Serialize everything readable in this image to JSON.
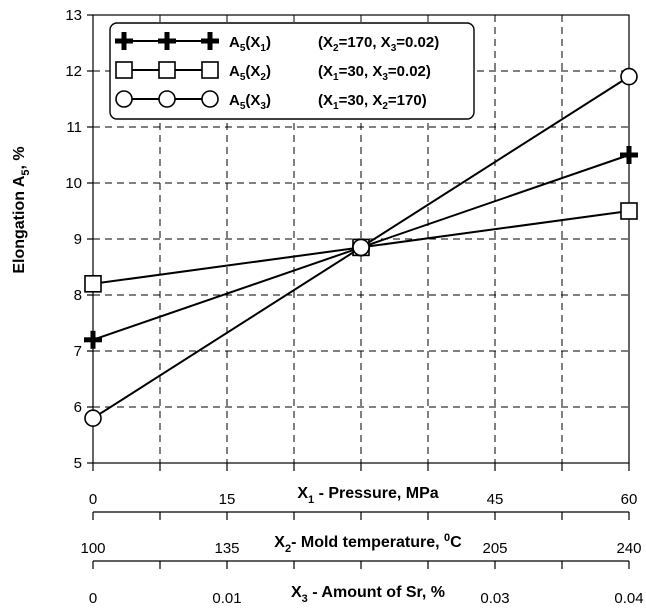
{
  "chart_data": {
    "type": "line",
    "ylabel": "Elongation A",
    "ylabel_sub": "5",
    "ylabel_suffix": ", %",
    "ylim": [
      5,
      13
    ],
    "yticks": [
      "5",
      "6",
      "7",
      "8",
      "9",
      "10",
      "11",
      "12",
      "13"
    ],
    "grid": true,
    "legend_position": "top-left",
    "x_axes": [
      {
        "title": "X",
        "title_sub": "1",
        "title_rest": " - Pressure, MPa",
        "range": [
          0,
          60
        ],
        "ticks": [
          "0",
          "15",
          "",
          "45",
          "60"
        ]
      },
      {
        "title": "X",
        "title_sub": "2",
        "title_rest": "- Mold temperature, ",
        "title_sup": "0",
        "title_unit": "C",
        "range": [
          100,
          240
        ],
        "ticks": [
          "100",
          "135",
          "",
          "205",
          "240"
        ]
      },
      {
        "title": "X",
        "title_sub": "3",
        "title_rest": " - Amount of Sr, %",
        "range": [
          0,
          0.04
        ],
        "ticks": [
          "0",
          "0.01",
          "",
          "0.03",
          "0.04"
        ]
      }
    ],
    "series": [
      {
        "name_main": "A",
        "name_sub": "5",
        "name_arg": "(X",
        "name_arg_sub": "1",
        "name_arg_end": ")",
        "cond": "(X2=170, X3=0.02)",
        "cond_parts": [
          "(X",
          "2",
          "=170, X",
          "3",
          "=0.02)"
        ],
        "marker": "plus",
        "x_axis_index": 0,
        "x": [
          0,
          30,
          60
        ],
        "y": [
          7.2,
          8.85,
          10.5
        ]
      },
      {
        "name_main": "A",
        "name_sub": "5",
        "name_arg": "(X",
        "name_arg_sub": "2",
        "name_arg_end": ")",
        "cond": "(X1=30, X3=0.02)",
        "cond_parts": [
          "(X",
          "1",
          "=30, X",
          "3",
          "=0.02)"
        ],
        "marker": "square",
        "x_axis_index": 1,
        "x": [
          100,
          170,
          240
        ],
        "y": [
          8.2,
          8.85,
          9.5
        ]
      },
      {
        "name_main": "A",
        "name_sub": "5",
        "name_arg": "(X",
        "name_arg_sub": "3",
        "name_arg_end": ")",
        "cond": "(X1=30, X2=170)",
        "cond_parts": [
          "(X",
          "1",
          "=30, X",
          "2",
          "=170)"
        ],
        "marker": "circle",
        "x_axis_index": 2,
        "x": [
          0,
          0.02,
          0.04
        ],
        "y": [
          5.8,
          8.85,
          11.9
        ]
      }
    ]
  }
}
